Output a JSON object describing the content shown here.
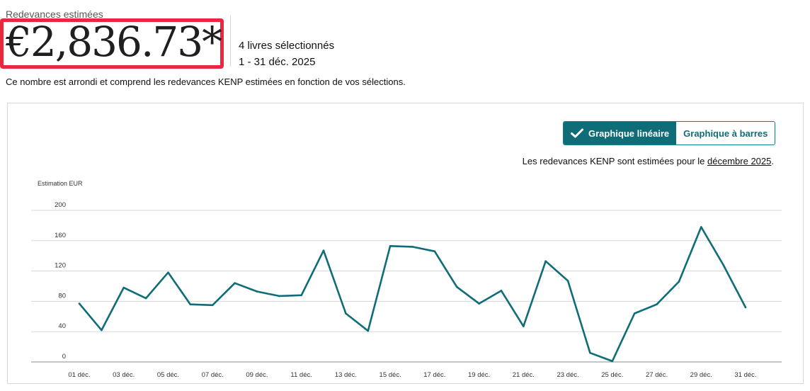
{
  "header": {
    "label": "Redevances estimées",
    "amount": "€2,836.73*",
    "books_selected": "4 livres sélectionnés",
    "date_range": "1 - 31 déc. 2025",
    "note": "Ce nombre est arrondi et comprend les redevances KENP estimées en fonction de vos sélections."
  },
  "toggle": {
    "line_label": "Graphique linéaire",
    "bar_label": "Graphique à barres",
    "active": "line"
  },
  "kenp_note": {
    "prefix": "Les redevances KENP sont estimées pour le ",
    "link": "décembre 2025",
    "suffix": "."
  },
  "colors": {
    "accent": "#0e6d77",
    "highlight_border": "#e8283f",
    "line": "#0e6d77"
  },
  "chart_data": {
    "type": "line",
    "ylabel": "Estimation EUR",
    "ylim": [
      0,
      200
    ],
    "yticks": [
      0,
      40,
      80,
      120,
      160,
      200
    ],
    "x": [
      "01 déc.",
      "02 déc.",
      "03 déc.",
      "04 déc.",
      "05 déc.",
      "06 déc.",
      "07 déc.",
      "08 déc.",
      "09 déc.",
      "10 déc.",
      "11 déc.",
      "12 déc.",
      "13 déc.",
      "14 déc.",
      "15 déc.",
      "16 déc.",
      "17 déc.",
      "18 déc.",
      "19 déc.",
      "20 déc.",
      "21 déc.",
      "22 déc.",
      "23 déc.",
      "24 déc.",
      "25 déc.",
      "26 déc.",
      "27 déc.",
      "28 déc.",
      "29 déc.",
      "30 déc.",
      "31 déc."
    ],
    "x_tick_labels": [
      "01 déc.",
      "03 déc.",
      "05 déc.",
      "07 déc.",
      "09 déc.",
      "11 déc.",
      "13 déc.",
      "15 déc.",
      "17 déc.",
      "19 déc.",
      "21 déc.",
      "23 déc.",
      "25 déc.",
      "27 déc.",
      "29 déc.",
      "31 déc."
    ],
    "series": [
      {
        "values": [
          77,
          42,
          98,
          84,
          118,
          76,
          75,
          104,
          93,
          87,
          88,
          147,
          64,
          41,
          153,
          152,
          146,
          99,
          77,
          94,
          47,
          133,
          107,
          12,
          1,
          64,
          76,
          106,
          178,
          128,
          72
        ]
      }
    ],
    "grid": true
  }
}
